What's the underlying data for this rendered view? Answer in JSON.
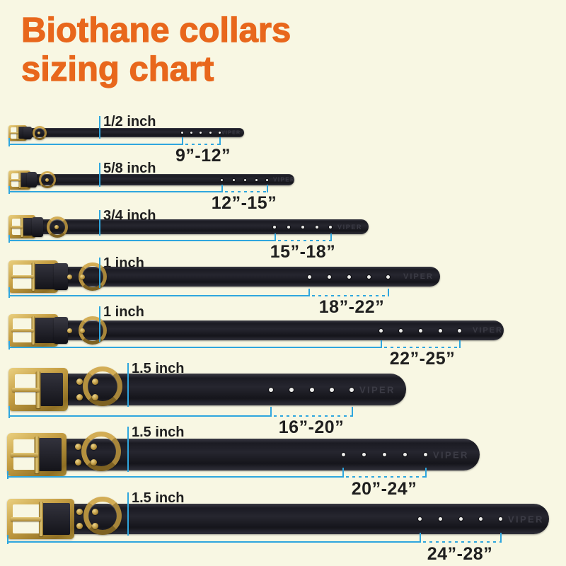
{
  "title": {
    "line1": "Biothane collars",
    "line2": "sizing chart"
  },
  "collars": [
    {
      "width_label": "1/2 inch",
      "range_label": "9”-12”",
      "brand": "VIPER"
    },
    {
      "width_label": "5/8 inch",
      "range_label": "12”-15”",
      "brand": "VIPER"
    },
    {
      "width_label": "3/4 inch",
      "range_label": "15”-18”",
      "brand": "VIPER"
    },
    {
      "width_label": "1 inch",
      "range_label": "18”-22”",
      "brand": "VIPER"
    },
    {
      "width_label": "1 inch",
      "range_label": "22”-25”",
      "brand": "VIPER"
    },
    {
      "width_label": "1.5 inch",
      "range_label": "16”-20”",
      "brand": "VIPER"
    },
    {
      "width_label": "1.5 inch",
      "range_label": "20”-24”",
      "brand": "VIPER"
    },
    {
      "width_label": "1.5 inch",
      "range_label": "24”-28”",
      "brand": "VIPER"
    }
  ],
  "colors": {
    "background": "#f8f7e3",
    "title_orange": "#e8671c",
    "dimension_blue": "#2fa6de",
    "label_text": "#1f1f1f",
    "brand_emboss": "#3b3b45",
    "hole_white": "#ececea"
  }
}
